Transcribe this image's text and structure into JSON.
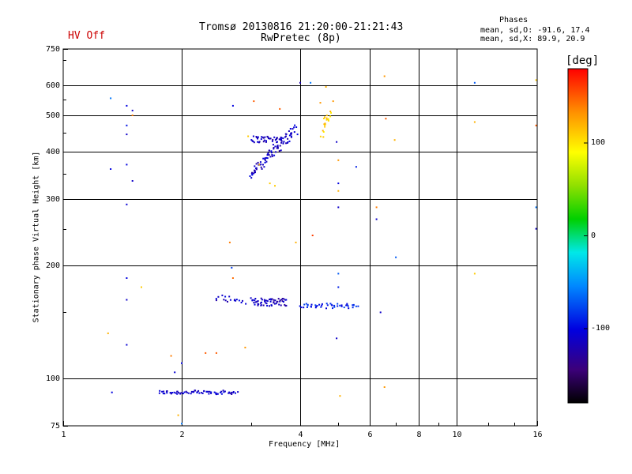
{
  "header": {
    "title_line1": "Tromsø 20130816 21:20:00-21:21:43",
    "title_line2": "RwPretec (8p)",
    "status": "HV Off",
    "status_color": "#cc0000"
  },
  "phases_box": {
    "title": "Phases",
    "line_o": "mean, sd,O: -91.6, 17.4",
    "line_x": "mean, sd,X:  89.9, 20.9"
  },
  "colorbar": {
    "unit": "[deg]",
    "ticks": [
      "100",
      "0",
      "-100"
    ],
    "tick_values": [
      100,
      0,
      -100
    ],
    "range": [
      -180,
      180
    ]
  },
  "chart_data": {
    "type": "scatter",
    "title": "Tromsø 20130816 21:20:00-21:21:43",
    "subtitle": "RwPretec (8p)",
    "xlabel": "Frequency [MHz]",
    "ylabel": "Stationary phase Virtual Height [km]",
    "xscale": "log",
    "yscale": "log",
    "xlim": [
      1,
      16
    ],
    "ylim": [
      75,
      750
    ],
    "xticks": [
      1,
      2,
      4,
      6,
      8,
      10,
      16
    ],
    "xtick_labels": [
      "1",
      "2",
      "4",
      "6",
      "8",
      "10",
      "16"
    ],
    "yticks": [
      75,
      100,
      200,
      300,
      400,
      500,
      600,
      750
    ],
    "ytick_labels": [
      "75",
      "100",
      "200",
      "300",
      "400",
      "500",
      "600",
      "750"
    ],
    "grid": true,
    "color_axis": "phase [deg]",
    "traces": [
      {
        "x": [
          1.75,
          2.75
        ],
        "y": [
          92,
          92
        ],
        "phase": -110,
        "n": 70,
        "spread": 0.012,
        "yspread": 0.012
      },
      {
        "x": [
          3.0,
          3.6
        ],
        "y": [
          432,
          432
        ],
        "phase": -115,
        "n": 40,
        "spread": 0.01,
        "yspread": 0.02
      },
      {
        "x": [
          3.0,
          3.9
        ],
        "y": [
          350,
          460
        ],
        "phase": -112,
        "n": 90,
        "spread": 0.015,
        "yspread": 0.03
      },
      {
        "x": [
          3.0,
          3.7
        ],
        "y": [
          160,
          160
        ],
        "phase": -115,
        "n": 60,
        "spread": 0.01,
        "yspread": 0.025
      },
      {
        "x": [
          2.45,
          2.9
        ],
        "y": [
          165,
          160
        ],
        "phase": -110,
        "n": 18,
        "spread": 0.01,
        "yspread": 0.02
      },
      {
        "x": [
          4.0,
          5.6
        ],
        "y": [
          156,
          156
        ],
        "phase": -90,
        "n": 45,
        "spread": 0.01,
        "yspread": 0.015
      },
      {
        "x": [
          4.55,
          4.75
        ],
        "y": [
          450,
          510
        ],
        "phase": 110,
        "n": 20,
        "spread": 0.01,
        "yspread": 0.04
      }
    ],
    "points": [
      {
        "x": 1.32,
        "y": 555,
        "phase": -60
      },
      {
        "x": 1.32,
        "y": 360,
        "phase": -100
      },
      {
        "x": 1.3,
        "y": 132,
        "phase": 120
      },
      {
        "x": 1.33,
        "y": 92,
        "phase": -100
      },
      {
        "x": 1.45,
        "y": 530,
        "phase": -100
      },
      {
        "x": 1.45,
        "y": 470,
        "phase": -95
      },
      {
        "x": 1.45,
        "y": 445,
        "phase": -110
      },
      {
        "x": 1.45,
        "y": 370,
        "phase": -100
      },
      {
        "x": 1.45,
        "y": 290,
        "phase": -105
      },
      {
        "x": 1.45,
        "y": 185,
        "phase": -100
      },
      {
        "x": 1.45,
        "y": 162,
        "phase": -110
      },
      {
        "x": 1.45,
        "y": 123,
        "phase": -105
      },
      {
        "x": 1.5,
        "y": 515,
        "phase": -110
      },
      {
        "x": 1.5,
        "y": 500,
        "phase": 140
      },
      {
        "x": 1.5,
        "y": 335,
        "phase": -110
      },
      {
        "x": 1.58,
        "y": 175,
        "phase": 110
      },
      {
        "x": 1.88,
        "y": 115,
        "phase": 140
      },
      {
        "x": 1.92,
        "y": 104,
        "phase": -105
      },
      {
        "x": 1.96,
        "y": 80,
        "phase": 120
      },
      {
        "x": 2.0,
        "y": 110,
        "phase": -100
      },
      {
        "x": 2.0,
        "y": 76,
        "phase": -60
      },
      {
        "x": 2.3,
        "y": 117,
        "phase": 150
      },
      {
        "x": 2.45,
        "y": 117,
        "phase": 150
      },
      {
        "x": 2.65,
        "y": 230,
        "phase": 140
      },
      {
        "x": 2.68,
        "y": 197,
        "phase": -80
      },
      {
        "x": 2.7,
        "y": 185,
        "phase": 145
      },
      {
        "x": 2.7,
        "y": 530,
        "phase": -100
      },
      {
        "x": 2.9,
        "y": 121,
        "phase": 130
      },
      {
        "x": 2.95,
        "y": 440,
        "phase": 110
      },
      {
        "x": 3.05,
        "y": 545,
        "phase": 150
      },
      {
        "x": 3.15,
        "y": 370,
        "phase": 120
      },
      {
        "x": 3.35,
        "y": 330,
        "phase": 110
      },
      {
        "x": 3.45,
        "y": 325,
        "phase": 110
      },
      {
        "x": 3.55,
        "y": 520,
        "phase": 150
      },
      {
        "x": 3.9,
        "y": 230,
        "phase": 120
      },
      {
        "x": 4.0,
        "y": 610,
        "phase": -120
      },
      {
        "x": 4.25,
        "y": 610,
        "phase": -60
      },
      {
        "x": 4.3,
        "y": 240,
        "phase": 160
      },
      {
        "x": 4.5,
        "y": 540,
        "phase": 130
      },
      {
        "x": 4.65,
        "y": 595,
        "phase": 120
      },
      {
        "x": 4.85,
        "y": 545,
        "phase": 130
      },
      {
        "x": 4.95,
        "y": 425,
        "phase": -110
      },
      {
        "x": 5.0,
        "y": 380,
        "phase": 130
      },
      {
        "x": 5.0,
        "y": 330,
        "phase": -100
      },
      {
        "x": 5.0,
        "y": 315,
        "phase": 120
      },
      {
        "x": 5.0,
        "y": 285,
        "phase": -110
      },
      {
        "x": 5.0,
        "y": 190,
        "phase": -70
      },
      {
        "x": 5.0,
        "y": 175,
        "phase": -90
      },
      {
        "x": 4.95,
        "y": 128,
        "phase": -110
      },
      {
        "x": 5.05,
        "y": 90,
        "phase": 120
      },
      {
        "x": 5.55,
        "y": 365,
        "phase": -90
      },
      {
        "x": 6.25,
        "y": 285,
        "phase": 140
      },
      {
        "x": 6.25,
        "y": 265,
        "phase": -110
      },
      {
        "x": 6.4,
        "y": 150,
        "phase": -110
      },
      {
        "x": 6.55,
        "y": 635,
        "phase": 130
      },
      {
        "x": 6.6,
        "y": 490,
        "phase": 150
      },
      {
        "x": 6.55,
        "y": 95,
        "phase": 130
      },
      {
        "x": 6.95,
        "y": 430,
        "phase": 120
      },
      {
        "x": 7.0,
        "y": 210,
        "phase": -70
      },
      {
        "x": 11.1,
        "y": 610,
        "phase": -70
      },
      {
        "x": 11.1,
        "y": 480,
        "phase": 120
      },
      {
        "x": 11.1,
        "y": 190,
        "phase": 110
      },
      {
        "x": 15.9,
        "y": 620,
        "phase": 110
      },
      {
        "x": 15.9,
        "y": 470,
        "phase": 150
      },
      {
        "x": 15.9,
        "y": 285,
        "phase": -60
      },
      {
        "x": 15.9,
        "y": 250,
        "phase": -110
      }
    ]
  }
}
